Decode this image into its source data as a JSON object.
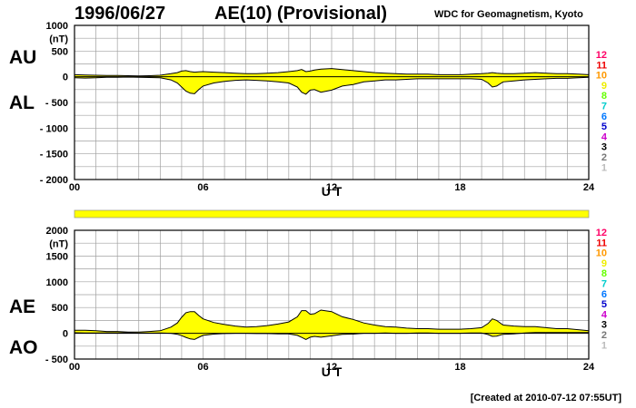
{
  "header": {
    "date": "1996/06/27",
    "title": "AE(10) (Provisional)",
    "source": "WDC for Geomagnetism, Kyoto"
  },
  "footer": {
    "created": "[Created at 2010-07-12 07:55UT]"
  },
  "labels": {
    "au": "AU",
    "al": "AL",
    "ae": "AE",
    "ao": "AO"
  },
  "colors": {
    "fill": "#ffff00",
    "grid": "#a0a0a0",
    "curve": "#000000"
  },
  "legend_numbers": [
    {
      "label": "12",
      "color": "#ff0066"
    },
    {
      "label": "11",
      "color": "#ee0000"
    },
    {
      "label": "10",
      "color": "#ff9900"
    },
    {
      "label": "9",
      "color": "#eeee00"
    },
    {
      "label": "8",
      "color": "#66ff00"
    },
    {
      "label": "7",
      "color": "#00cccc"
    },
    {
      "label": "6",
      "color": "#0077ff"
    },
    {
      "label": "5",
      "color": "#0000cc"
    },
    {
      "label": "4",
      "color": "#cc00cc"
    },
    {
      "label": "3",
      "color": "#000000"
    },
    {
      "label": "2",
      "color": "#777777"
    },
    {
      "label": "1",
      "color": "#bbbbbb"
    }
  ],
  "data_bar": {
    "color": "#ffff00"
  },
  "chart_data": [
    {
      "type": "area",
      "panel": "AU/AL",
      "xlabel": "U T",
      "ylabel": "(nT)",
      "xlim": [
        0,
        24
      ],
      "ylim": [
        -2000,
        1000
      ],
      "x_ticks": [
        "00",
        "06",
        "12",
        "18",
        "24"
      ],
      "y_ticks": [
        "1000",
        "500",
        "0",
        "- 500",
        "- 1000",
        "- 1500",
        "- 2000"
      ],
      "grid": true,
      "x": [
        0,
        0.5,
        1,
        1.5,
        2,
        2.5,
        3,
        3.5,
        4,
        4.5,
        4.8,
        5,
        5.2,
        5.4,
        5.6,
        5.8,
        6,
        6.5,
        7,
        7.5,
        8,
        8.5,
        9,
        9.5,
        10,
        10.4,
        10.6,
        10.8,
        11,
        11.2,
        11.5,
        12,
        12.5,
        13,
        13.5,
        14,
        14.5,
        15,
        15.5,
        16,
        16.5,
        17,
        17.5,
        18,
        18.5,
        19,
        19.3,
        19.5,
        19.7,
        20,
        20.5,
        21,
        21.5,
        22,
        22.5,
        23,
        23.5,
        24
      ],
      "series": [
        {
          "name": "AU",
          "values": [
            40,
            35,
            30,
            25,
            25,
            20,
            15,
            20,
            30,
            60,
            80,
            110,
            120,
            100,
            90,
            95,
            100,
            90,
            80,
            70,
            60,
            60,
            70,
            80,
            100,
            120,
            140,
            100,
            110,
            130,
            150,
            160,
            140,
            120,
            100,
            80,
            70,
            60,
            50,
            50,
            50,
            40,
            40,
            40,
            50,
            60,
            70,
            80,
            70,
            60,
            60,
            70,
            80,
            70,
            60,
            60,
            50,
            40
          ]
        },
        {
          "name": "AL",
          "values": [
            -20,
            -25,
            -20,
            -10,
            -10,
            -5,
            -10,
            -15,
            -20,
            -60,
            -120,
            -200,
            -280,
            -320,
            -330,
            -250,
            -180,
            -120,
            -90,
            -70,
            -60,
            -70,
            -80,
            -100,
            -120,
            -200,
            -300,
            -340,
            -260,
            -250,
            -300,
            -260,
            -180,
            -150,
            -100,
            -80,
            -60,
            -60,
            -50,
            -40,
            -40,
            -40,
            -40,
            -40,
            -40,
            -50,
            -120,
            -200,
            -180,
            -100,
            -80,
            -60,
            -50,
            -40,
            -30,
            -30,
            -20,
            -10
          ]
        }
      ]
    },
    {
      "type": "area",
      "panel": "AE/AO",
      "xlabel": "U T",
      "ylabel": "(nT)",
      "xlim": [
        0,
        24
      ],
      "ylim": [
        -500,
        2000
      ],
      "x_ticks": [
        "00",
        "06",
        "12",
        "18",
        "24"
      ],
      "y_ticks": [
        "2000",
        "1500",
        "1000",
        "500",
        "0",
        "- 500"
      ],
      "grid": true,
      "x": [
        0,
        0.5,
        1,
        1.5,
        2,
        2.5,
        3,
        3.5,
        4,
        4.5,
        4.8,
        5,
        5.2,
        5.4,
        5.6,
        5.8,
        6,
        6.5,
        7,
        7.5,
        8,
        8.5,
        9,
        9.5,
        10,
        10.4,
        10.6,
        10.8,
        11,
        11.2,
        11.5,
        12,
        12.5,
        13,
        13.5,
        14,
        14.5,
        15,
        15.5,
        16,
        16.5,
        17,
        17.5,
        18,
        18.5,
        19,
        19.3,
        19.5,
        19.7,
        20,
        20.5,
        21,
        21.5,
        22,
        22.5,
        23,
        23.5,
        24
      ],
      "series": [
        {
          "name": "AE",
          "values": [
            60,
            60,
            50,
            35,
            35,
            25,
            25,
            35,
            50,
            120,
            200,
            310,
            400,
            420,
            420,
            345,
            280,
            210,
            170,
            140,
            120,
            130,
            150,
            180,
            220,
            320,
            440,
            440,
            370,
            380,
            450,
            420,
            320,
            270,
            200,
            160,
            130,
            120,
            100,
            90,
            90,
            80,
            80,
            80,
            90,
            110,
            190,
            280,
            250,
            160,
            140,
            130,
            130,
            110,
            90,
            90,
            70,
            50
          ]
        },
        {
          "name": "AO",
          "values": [
            10,
            5,
            5,
            8,
            8,
            8,
            3,
            3,
            5,
            0,
            -20,
            -45,
            -80,
            -110,
            -120,
            -78,
            -40,
            -15,
            -5,
            0,
            0,
            -5,
            -5,
            -10,
            -10,
            -40,
            -80,
            -120,
            -75,
            -60,
            -75,
            -50,
            -20,
            -15,
            0,
            0,
            5,
            0,
            0,
            5,
            5,
            0,
            0,
            0,
            5,
            5,
            -25,
            -60,
            -55,
            -20,
            -10,
            5,
            15,
            15,
            15,
            15,
            15,
            15
          ]
        }
      ]
    }
  ]
}
